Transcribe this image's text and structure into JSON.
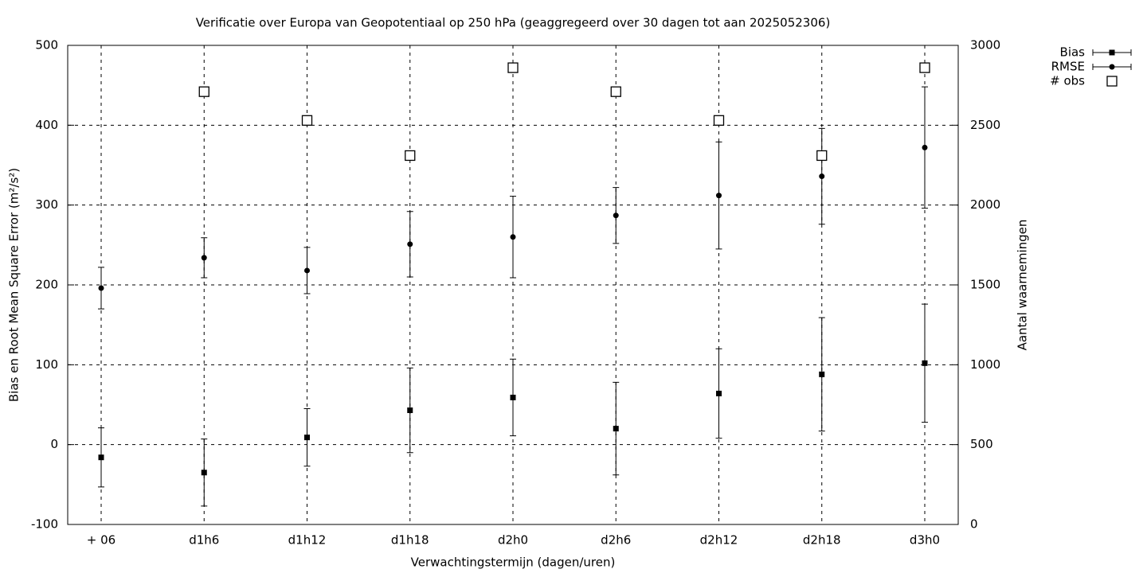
{
  "chart_data": {
    "type": "errorbar",
    "title": "Verificatie over Europa van Geopotentiaal op 250 hPa (geaggregeerd over 30 dagen tot aan 2025052306)",
    "x_label": "Verwachtingstermijn (dagen/uren)",
    "y_label": "Bias en Root Mean Square Error (m²/s²)",
    "y2_label": "Aantal waarnemingen",
    "categories": [
      "+ 06",
      "d1h6",
      "d1h12",
      "d1h18",
      "d2h0",
      "d2h6",
      "d2h12",
      "d2h18",
      "d3h0"
    ],
    "ylim": [
      -100,
      500
    ],
    "yticks": [
      -100,
      0,
      100,
      200,
      300,
      400,
      500
    ],
    "y2lim": [
      0,
      3000
    ],
    "y2ticks": [
      0,
      500,
      1000,
      1500,
      2000,
      2500,
      3000
    ],
    "grid": true,
    "legend": "top-right",
    "series": [
      {
        "name": "Bias",
        "color": "#000000",
        "marker": "square",
        "values": [
          -16,
          -35,
          9,
          43,
          59,
          20,
          64,
          88,
          102
        ],
        "errors": [
          37,
          42,
          36,
          53,
          48,
          58,
          56,
          71,
          74
        ]
      },
      {
        "name": "RMSE",
        "color": "#000000",
        "marker": "circle",
        "values": [
          196,
          234,
          218,
          251,
          260,
          287,
          312,
          336,
          372
        ],
        "errors": [
          26,
          25,
          29,
          41,
          51,
          35,
          67,
          60,
          76
        ]
      },
      {
        "name": "# obs",
        "color": "#000000",
        "marker": "open-square",
        "axis": "y2",
        "values": [
          null,
          2710,
          2530,
          2310,
          2860,
          2710,
          2530,
          2310,
          2860
        ]
      }
    ]
  }
}
